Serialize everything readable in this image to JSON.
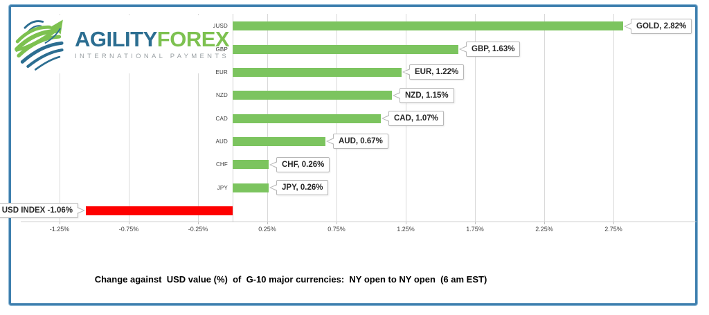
{
  "logo": {
    "brand_primary": "AGILITY",
    "brand_secondary": "FOREX",
    "tagline": "INTERNATIONAL PAYMENTS"
  },
  "caption": "Change against  USD value (%)  of  G-10 major currencies:  NY open to NY open  (6 am EST)",
  "colors": {
    "positive_bar": "#7cc45f",
    "negative_bar": "#fe0000",
    "frame_blue": "#3e7fae",
    "gridline": "#d9d9d9",
    "brand_blue": "#2c6e91",
    "brand_green": "#7dc150",
    "tagline_gray": "#9aa0a4"
  },
  "chart_data": {
    "type": "bar",
    "orientation": "horizontal",
    "title": "Change against  USD value (%)  of  G-10 major currencies:  NY open to NY open  (6 am EST)",
    "xlabel": "",
    "ylabel": "",
    "grid": true,
    "series": [
      {
        "axis_label": "XAUUSD",
        "display_name": "GOLD",
        "value": 2.82,
        "callout": "GOLD, 2.82%",
        "color": "positive"
      },
      {
        "axis_label": "GBP",
        "display_name": "GBP",
        "value": 1.63,
        "callout": "GBP, 1.63%",
        "color": "positive"
      },
      {
        "axis_label": "EUR",
        "display_name": "EUR",
        "value": 1.22,
        "callout": "EUR, 1.22%",
        "color": "positive"
      },
      {
        "axis_label": "NZD",
        "display_name": "NZD",
        "value": 1.15,
        "callout": "NZD, 1.15%",
        "color": "positive"
      },
      {
        "axis_label": "CAD",
        "display_name": "CAD",
        "value": 1.07,
        "callout": "CAD, 1.07%",
        "color": "positive"
      },
      {
        "axis_label": "AUD",
        "display_name": "AUD",
        "value": 0.67,
        "callout": "AUD, 0.67%",
        "color": "positive"
      },
      {
        "axis_label": "CHF",
        "display_name": "CHF",
        "value": 0.26,
        "callout": "CHF, 0.26%",
        "color": "positive"
      },
      {
        "axis_label": "JPY",
        "display_name": "JPY",
        "value": 0.26,
        "callout": "JPY, 0.26%",
        "color": "positive"
      },
      {
        "axis_label": "",
        "display_name": "USD INDEX",
        "value": -1.06,
        "callout": "USD INDEX -1.06%",
        "color": "negative"
      }
    ],
    "x_axis": {
      "min": -1.53,
      "max": 3.35,
      "ticks": [
        {
          "label": "-1.25%",
          "value": -1.25
        },
        {
          "label": "-0.75%",
          "value": -0.75
        },
        {
          "label": "-0.25%",
          "value": -0.25
        },
        {
          "label": "0.25%",
          "value": 0.25
        },
        {
          "label": "0.75%",
          "value": 0.75
        },
        {
          "label": "1.25%",
          "value": 1.25
        },
        {
          "label": "1.75%",
          "value": 1.75
        },
        {
          "label": "2.25%",
          "value": 2.25
        },
        {
          "label": "2.75%",
          "value": 2.75
        }
      ]
    }
  }
}
